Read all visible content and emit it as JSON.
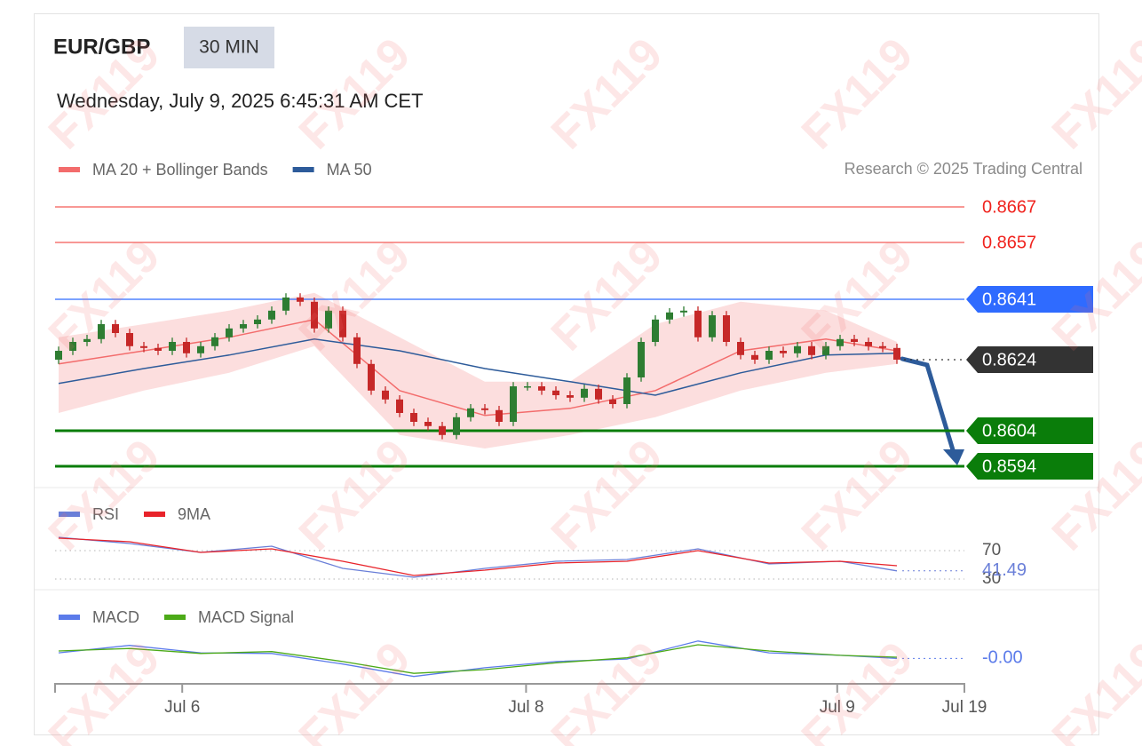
{
  "header": {
    "symbol": "EUR/GBP",
    "interval": "30 MIN",
    "timestamp": "Wednesday, July 9, 2025 6:45:31 AM CET",
    "credit": "Research © 2025 Trading Central"
  },
  "watermark": "FX119",
  "chart_data": [
    {
      "type": "candlestick",
      "up_color": "#2e7d32",
      "down_color": "#c62828",
      "xlim": [
        -0.25,
        63.75
      ],
      "ylim": [
        0.859,
        0.867
      ],
      "x": [
        0,
        1,
        2,
        3,
        4,
        5,
        6,
        7,
        8,
        9,
        10,
        11,
        12,
        13,
        14,
        15,
        16,
        17,
        18,
        19,
        20,
        21,
        22,
        23,
        24,
        25,
        26,
        27,
        28,
        29,
        30,
        31,
        32,
        33,
        34,
        35,
        36,
        37,
        38,
        39,
        40,
        41,
        42,
        43,
        44,
        45,
        46,
        47,
        48,
        49,
        50,
        51,
        52,
        53,
        54,
        55,
        56,
        57,
        58,
        59
      ],
      "open": [
        0.8624,
        0.86265,
        0.8629,
        0.86298,
        0.8634,
        0.86315,
        0.86278,
        0.86273,
        0.86265,
        0.8629,
        0.86258,
        0.86278,
        0.86303,
        0.86328,
        0.8634,
        0.86353,
        0.86378,
        0.86415,
        0.86403,
        0.86328,
        0.86378,
        0.86303,
        0.86228,
        0.86153,
        0.86128,
        0.8609,
        0.86065,
        0.86053,
        0.86028,
        0.86078,
        0.86103,
        0.86098,
        0.86065,
        0.86165,
        0.86165,
        0.86153,
        0.8614,
        0.86133,
        0.86158,
        0.86128,
        0.86115,
        0.8619,
        0.8629,
        0.86353,
        0.86373,
        0.86378,
        0.86303,
        0.86365,
        0.8629,
        0.86253,
        0.8624,
        0.86265,
        0.86258,
        0.86278,
        0.86253,
        0.86278,
        0.86298,
        0.8629,
        0.86278,
        0.86273
      ],
      "high": [
        0.86277,
        0.86302,
        0.8631,
        0.86352,
        0.86352,
        0.86327,
        0.8629,
        0.86285,
        0.86302,
        0.86302,
        0.8629,
        0.86315,
        0.8634,
        0.86352,
        0.86365,
        0.8639,
        0.86427,
        0.86427,
        0.86415,
        0.8639,
        0.8639,
        0.86315,
        0.8624,
        0.86165,
        0.8614,
        0.86102,
        0.86077,
        0.86065,
        0.8609,
        0.86115,
        0.86115,
        0.8611,
        0.86177,
        0.86177,
        0.86177,
        0.86165,
        0.86152,
        0.8617,
        0.8617,
        0.8614,
        0.86202,
        0.86302,
        0.86365,
        0.86385,
        0.8639,
        0.8639,
        0.86377,
        0.86377,
        0.86302,
        0.86265,
        0.86277,
        0.86277,
        0.8629,
        0.8629,
        0.8629,
        0.8631,
        0.8631,
        0.86302,
        0.8629,
        0.86285
      ],
      "low": [
        0.86228,
        0.86253,
        0.86278,
        0.86286,
        0.86303,
        0.86266,
        0.86261,
        0.86253,
        0.86253,
        0.86246,
        0.86246,
        0.86266,
        0.86291,
        0.86316,
        0.86328,
        0.86341,
        0.86366,
        0.86391,
        0.86316,
        0.86316,
        0.86291,
        0.86216,
        0.86141,
        0.86116,
        0.86078,
        0.86053,
        0.86041,
        0.86016,
        0.86016,
        0.86066,
        0.86086,
        0.86053,
        0.86053,
        0.86153,
        0.86141,
        0.86128,
        0.86121,
        0.86121,
        0.86116,
        0.86103,
        0.86103,
        0.86178,
        0.86278,
        0.86341,
        0.86361,
        0.86291,
        0.86291,
        0.86278,
        0.86241,
        0.86228,
        0.86228,
        0.86246,
        0.86246,
        0.86241,
        0.86241,
        0.86266,
        0.86278,
        0.86266,
        0.86261,
        0.86228
      ],
      "close": [
        0.86265,
        0.8629,
        0.86298,
        0.8634,
        0.86315,
        0.86278,
        0.86273,
        0.86265,
        0.8629,
        0.86258,
        0.86278,
        0.86303,
        0.86328,
        0.8634,
        0.86353,
        0.86378,
        0.86415,
        0.86403,
        0.86328,
        0.86378,
        0.86303,
        0.86228,
        0.86153,
        0.86128,
        0.8609,
        0.86065,
        0.86053,
        0.86028,
        0.86078,
        0.86103,
        0.86098,
        0.86065,
        0.86165,
        0.86165,
        0.86153,
        0.8614,
        0.86133,
        0.86158,
        0.86128,
        0.86115,
        0.8619,
        0.8629,
        0.86353,
        0.86373,
        0.86378,
        0.86303,
        0.86365,
        0.8629,
        0.86253,
        0.8624,
        0.86265,
        0.86258,
        0.86278,
        0.86253,
        0.86278,
        0.86298,
        0.8629,
        0.86278,
        0.86273,
        0.8624
      ],
      "series": [
        {
          "name": "MA 20 + Bollinger Bands",
          "color": "#f36c6c",
          "band_color": "#fbd3d3",
          "x": [
            0,
            6,
            12,
            18,
            24,
            30,
            36,
            42,
            48,
            54,
            59
          ],
          "values": [
            0.86228,
            0.86265,
            0.86303,
            0.86353,
            0.86153,
            0.86083,
            0.86103,
            0.86153,
            0.86265,
            0.86298,
            0.86265
          ],
          "upper": [
            0.86303,
            0.8634,
            0.86378,
            0.86428,
            0.86303,
            0.86178,
            0.86178,
            0.8634,
            0.86403,
            0.86378,
            0.8629
          ],
          "lower": [
            0.8609,
            0.86153,
            0.86203,
            0.86278,
            0.86028,
            0.8599,
            0.86028,
            0.86078,
            0.86153,
            0.86203,
            0.86228
          ]
        },
        {
          "name": "MA 50",
          "color": "#2d5b9a",
          "x": [
            0,
            6,
            12,
            18,
            24,
            30,
            36,
            42,
            48,
            54,
            59
          ],
          "values": [
            0.86173,
            0.86215,
            0.86253,
            0.86298,
            0.86265,
            0.86215,
            0.86178,
            0.8614,
            0.86203,
            0.86253,
            0.86258
          ]
        }
      ],
      "levels": [
        {
          "value": 0.8667,
          "color": "#f0231e",
          "style": "thin",
          "box": false
        },
        {
          "value": 0.8657,
          "color": "#f0231e",
          "style": "thin",
          "box": false
        },
        {
          "value": 0.8641,
          "color": "#2f6bff",
          "style": "thin",
          "box": true
        },
        {
          "value": 0.8624,
          "color": "#333333",
          "style": "dotted",
          "box": true
        },
        {
          "value": 0.8604,
          "color": "#0a7d0a",
          "style": "bold",
          "box": true
        },
        {
          "value": 0.8594,
          "color": "#0a7d0a",
          "style": "bold",
          "box": true
        }
      ]
    },
    {
      "type": "line",
      "xlim": [
        -0.25,
        63.75
      ],
      "ylim": [
        25,
        100
      ],
      "yticks": [
        30,
        70
      ],
      "last_value": 41.49,
      "series": [
        {
          "name": "RSI",
          "color": "#6a7fd8",
          "x": [
            0,
            5,
            10,
            15,
            20,
            25,
            30,
            35,
            40,
            45,
            50,
            55,
            59
          ],
          "values": [
            88.8,
            80,
            67.5,
            76.3,
            45,
            32.5,
            45,
            55,
            57.5,
            72.5,
            51.3,
            55,
            41.49
          ]
        },
        {
          "name": "9MA",
          "color": "#e8232a",
          "x": [
            0,
            5,
            10,
            15,
            20,
            25,
            30,
            35,
            40,
            45,
            50,
            55,
            59
          ],
          "values": [
            87.5,
            82.5,
            67.5,
            72.5,
            55,
            35,
            42.5,
            52.5,
            55,
            70,
            52.5,
            55,
            48.8
          ]
        }
      ]
    },
    {
      "type": "line",
      "xlim": [
        -0.25,
        63.75
      ],
      "ylim": [
        -0.0005,
        0.0004
      ],
      "last_value": {
        "value": -2e-05,
        "label": "-0.00"
      },
      "xticks": [
        {
          "value": 8.7,
          "label": "Jul 6"
        },
        {
          "value": 32.9,
          "label": "Jul 8"
        },
        {
          "value": 54.8,
          "label": "Jul 9"
        },
        {
          "value": 63.75,
          "label": "Jul 19"
        }
      ],
      "series": [
        {
          "name": "MACD",
          "color": "#5b7bea",
          "x": [
            0,
            5,
            10,
            15,
            20,
            25,
            30,
            35,
            40,
            45,
            50,
            55,
            59
          ],
          "values": [
            7e-05,
            0.00019,
            7e-05,
            6e-05,
            -0.00011,
            -0.00031,
            -0.00017,
            -7e-05,
            -3e-05,
            0.00026,
            7e-05,
            3e-05,
            -2e-05
          ]
        },
        {
          "name": "MACD Signal",
          "color": "#4caa18",
          "x": [
            0,
            5,
            10,
            15,
            20,
            25,
            30,
            35,
            40,
            45,
            50,
            55,
            59
          ],
          "values": [
            0.0001,
            0.00014,
            6e-05,
            9e-05,
            -7e-05,
            -0.00026,
            -0.0002,
            -9e-05,
            -1e-05,
            0.0002,
            0.0001,
            3e-05,
            0
          ]
        }
      ]
    }
  ]
}
